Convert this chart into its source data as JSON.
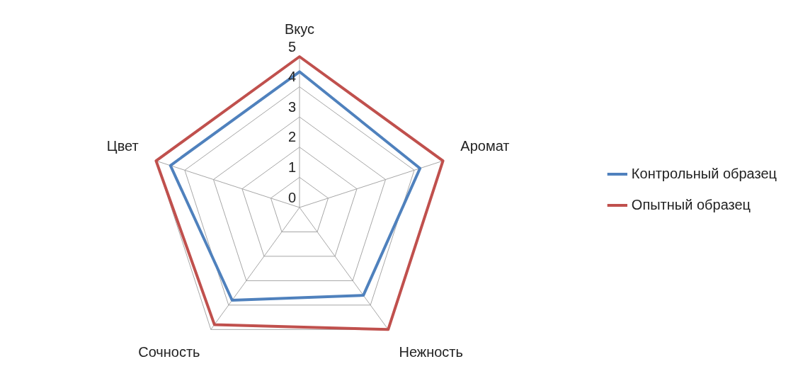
{
  "chart_data": {
    "type": "radar",
    "categories": [
      "Вкус",
      "Аромат",
      "Нежность",
      "Сочность",
      "Цвет"
    ],
    "series": [
      {
        "name": "Контрольный образец",
        "color": "#4f81bd",
        "values": [
          4.5,
          4.2,
          3.6,
          3.8,
          4.5
        ]
      },
      {
        "name": "Опытный образец",
        "color": "#c0504d",
        "values": [
          5,
          5,
          5,
          4.8,
          5
        ]
      }
    ],
    "ylim": [
      0,
      5
    ],
    "yticks": [
      0,
      1,
      2,
      3,
      4,
      5
    ],
    "grid": true,
    "legend": "right",
    "marker": "none"
  }
}
